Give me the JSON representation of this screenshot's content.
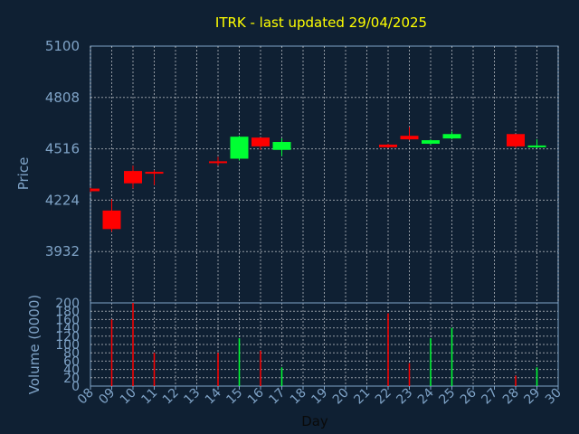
{
  "chart_data": [
    {
      "type": "candlestick",
      "title": "ITRK - last updated 29/04/2025",
      "ylabel": "Price",
      "ylim": [
        3640,
        5100
      ],
      "yticks": [
        3932,
        4224,
        4516,
        4808,
        5100
      ],
      "grid": true,
      "colors": {
        "up": "#00ff33",
        "down": "#ff0000",
        "background": "#0f2033",
        "grid": "#ffffff",
        "title": "#ffff00",
        "axis_text": "#7fa3c7"
      },
      "candles": [
        {
          "day": "08",
          "open": 4290,
          "high": 4295,
          "low": 4270,
          "close": 4275
        },
        {
          "day": "09",
          "open": 4165,
          "high": 4230,
          "low": 4045,
          "close": 4060
        },
        {
          "day": "10",
          "open": 4390,
          "high": 4420,
          "low": 4290,
          "close": 4320
        },
        {
          "day": "11",
          "open": 4385,
          "high": 4395,
          "low": 4310,
          "close": 4375
        },
        {
          "day": "14",
          "open": 4445,
          "high": 4470,
          "low": 4420,
          "close": 4440
        },
        {
          "day": "15",
          "open": 4460,
          "high": 4590,
          "low": 4450,
          "close": 4585
        },
        {
          "day": "16",
          "open": 4580,
          "high": 4580,
          "low": 4510,
          "close": 4530
        },
        {
          "day": "17",
          "open": 4510,
          "high": 4575,
          "low": 4475,
          "close": 4555
        },
        {
          "day": "22",
          "open": 4540,
          "high": 4545,
          "low": 4520,
          "close": 4525
        },
        {
          "day": "23",
          "open": 4590,
          "high": 4640,
          "low": 4565,
          "close": 4570
        },
        {
          "day": "24",
          "open": 4545,
          "high": 4570,
          "low": 4540,
          "close": 4565
        },
        {
          "day": "25",
          "open": 4575,
          "high": 4615,
          "low": 4570,
          "close": 4600
        },
        {
          "day": "28",
          "open": 4600,
          "high": 4600,
          "low": 4520,
          "close": 4530
        },
        {
          "day": "29",
          "open": 4530,
          "high": 4570,
          "low": 4520,
          "close": 4535
        }
      ]
    },
    {
      "type": "bar",
      "xlabel": "Day",
      "ylabel": "Volume (0000)",
      "ylim": [
        0,
        200
      ],
      "yticks": [
        0,
        20,
        40,
        60,
        80,
        100,
        120,
        140,
        160,
        180,
        200
      ],
      "categories": [
        "08",
        "09",
        "10",
        "11",
        "12",
        "13",
        "14",
        "15",
        "16",
        "17",
        "18",
        "19",
        "20",
        "21",
        "22",
        "23",
        "24",
        "25",
        "26",
        "27",
        "28",
        "29",
        "30"
      ],
      "bars": [
        {
          "day": "08",
          "value": 0,
          "color": "#ff0000"
        },
        {
          "day": "09",
          "value": 160,
          "color": "#ff0000"
        },
        {
          "day": "10",
          "value": 200,
          "color": "#ff0000"
        },
        {
          "day": "11",
          "value": 80,
          "color": "#ff0000"
        },
        {
          "day": "14",
          "value": 80,
          "color": "#ff0000"
        },
        {
          "day": "15",
          "value": 115,
          "color": "#00ff33"
        },
        {
          "day": "16",
          "value": 85,
          "color": "#ff0000"
        },
        {
          "day": "17",
          "value": 45,
          "color": "#00ff33"
        },
        {
          "day": "22",
          "value": 175,
          "color": "#ff0000"
        },
        {
          "day": "23",
          "value": 55,
          "color": "#ff0000"
        },
        {
          "day": "24",
          "value": 115,
          "color": "#00ff33"
        },
        {
          "day": "25",
          "value": 140,
          "color": "#00ff33"
        },
        {
          "day": "28",
          "value": 25,
          "color": "#ff0000"
        },
        {
          "day": "29",
          "value": 45,
          "color": "#00ff33"
        }
      ]
    }
  ]
}
